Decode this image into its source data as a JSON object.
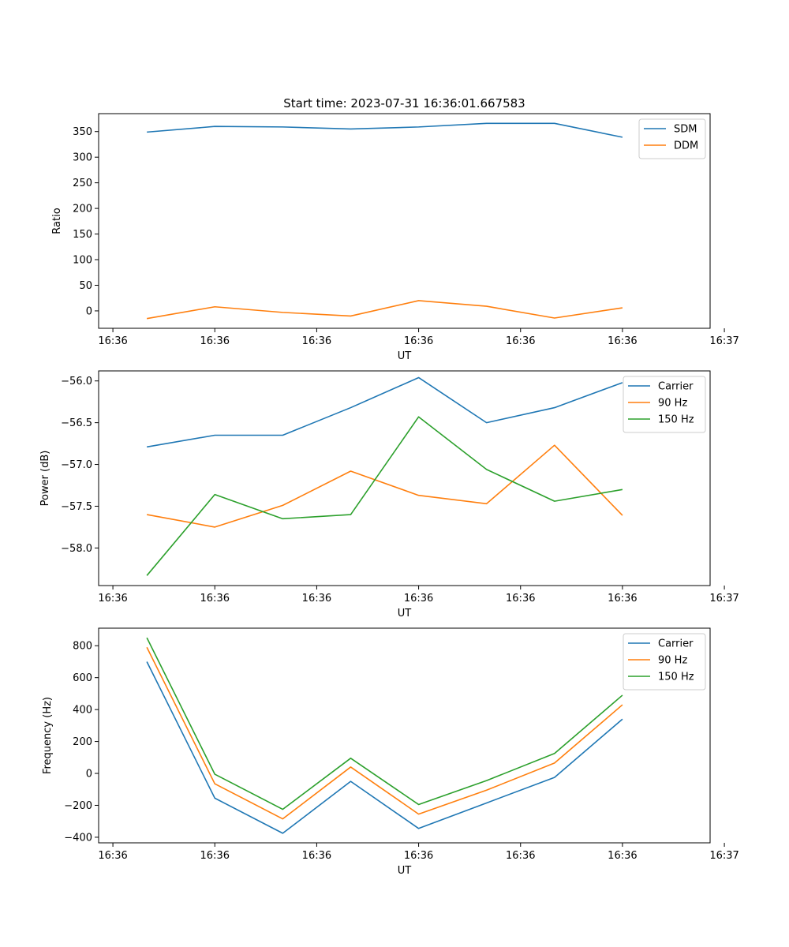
{
  "chart_data": [
    {
      "type": "line",
      "title": "Start time: 2023-07-31 16:36:01.667583",
      "xlabel": "UT",
      "ylabel": "Ratio",
      "x": [
        1,
        2,
        3,
        4,
        5,
        6,
        7,
        8
      ],
      "xlim": [
        0.29,
        9.29
      ],
      "x_ticks": [
        0.5,
        2,
        3.5,
        5,
        6.5,
        8,
        9.5
      ],
      "x_tick_labels": [
        "16:36",
        "16:36",
        "16:36",
        "16:36",
        "16:36",
        "16:36",
        "16:37"
      ],
      "ylim": [
        -34,
        385
      ],
      "y_ticks": [
        0,
        50,
        100,
        150,
        200,
        250,
        300,
        350
      ],
      "y_tick_labels": [
        "0",
        "50",
        "100",
        "150",
        "200",
        "250",
        "300",
        "350"
      ],
      "legend_position": "top-right",
      "series": [
        {
          "name": "SDM",
          "color": "#1f77b4",
          "values": [
            349,
            360,
            359,
            355,
            359,
            366,
            366,
            339
          ]
        },
        {
          "name": "DDM",
          "color": "#ff7f0e",
          "values": [
            -15,
            8,
            -3,
            -10,
            20,
            9,
            -14,
            6
          ]
        }
      ]
    },
    {
      "type": "line",
      "title": "",
      "xlabel": "UT",
      "ylabel": "Power (dB)",
      "x": [
        1,
        2,
        3,
        4,
        5,
        6,
        7,
        8
      ],
      "xlim": [
        0.29,
        9.29
      ],
      "x_ticks": [
        0.5,
        2,
        3.5,
        5,
        6.5,
        8,
        9.5
      ],
      "x_tick_labels": [
        "16:36",
        "16:36",
        "16:36",
        "16:36",
        "16:36",
        "16:36",
        "16:37"
      ],
      "ylim": [
        -58.45,
        -55.88
      ],
      "y_ticks": [
        -58.0,
        -57.5,
        -57.0,
        -56.5,
        -56.0
      ],
      "y_tick_labels": [
        "−58.0",
        "−57.5",
        "−57.0",
        "−56.5",
        "−56.0"
      ],
      "legend_position": "top-right",
      "series": [
        {
          "name": "Carrier",
          "color": "#1f77b4",
          "values": [
            -56.79,
            -56.65,
            -56.65,
            -56.32,
            -55.96,
            -56.5,
            -56.32,
            -56.02
          ]
        },
        {
          "name": "90 Hz",
          "color": "#ff7f0e",
          "values": [
            -57.6,
            -57.75,
            -57.49,
            -57.08,
            -57.37,
            -57.47,
            -56.77,
            -57.61
          ]
        },
        {
          "name": "150 Hz",
          "color": "#2ca02c",
          "values": [
            -58.33,
            -57.36,
            -57.65,
            -57.6,
            -56.43,
            -57.06,
            -57.44,
            -57.3
          ]
        }
      ]
    },
    {
      "type": "line",
      "title": "",
      "xlabel": "UT",
      "ylabel": "Frequency (Hz)",
      "x": [
        1,
        2,
        3,
        4,
        5,
        6,
        7,
        8
      ],
      "xlim": [
        0.29,
        9.29
      ],
      "x_ticks": [
        0.5,
        2,
        3.5,
        5,
        6.5,
        8,
        9.5
      ],
      "x_tick_labels": [
        "16:36",
        "16:36",
        "16:36",
        "16:36",
        "16:36",
        "16:36",
        "16:37"
      ],
      "ylim": [
        -435,
        910
      ],
      "y_ticks": [
        -400,
        -200,
        0,
        200,
        400,
        600,
        800
      ],
      "y_tick_labels": [
        "−400",
        "−200",
        "0",
        "200",
        "400",
        "600",
        "800"
      ],
      "legend_position": "top-right",
      "series": [
        {
          "name": "Carrier",
          "color": "#1f77b4",
          "values": [
            700,
            -155,
            -375,
            -50,
            -345,
            -185,
            -25,
            340
          ]
        },
        {
          "name": "90 Hz",
          "color": "#ff7f0e",
          "values": [
            790,
            -65,
            -285,
            40,
            -255,
            -105,
            65,
            430
          ]
        },
        {
          "name": "150 Hz",
          "color": "#2ca02c",
          "values": [
            850,
            -5,
            -225,
            95,
            -195,
            -45,
            125,
            490
          ]
        }
      ]
    }
  ]
}
